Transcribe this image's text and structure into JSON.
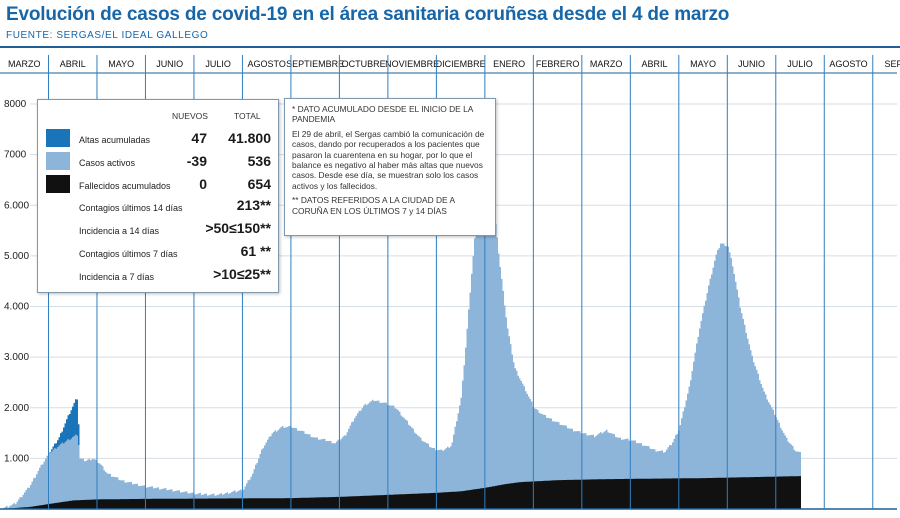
{
  "header": {
    "title": "Evolución de casos de covid-19 en el área sanitaria coruñesa desde el 4 de marzo",
    "source": "FUENTE: SERGAS/EL IDEAL GALLEGO"
  },
  "colors": {
    "title": "#1666a8",
    "altas": "#1a74ba",
    "activos": "#8db4d9",
    "fallecidos": "#111111",
    "month_line": "#2f7fc1",
    "grid": "#d6dde3"
  },
  "legend": {
    "col_nuevos": "NUEVOS",
    "col_total": "TOTAL",
    "rows": [
      {
        "label": "Altas acumuladas",
        "nuevos": "47",
        "total": "41.800"
      },
      {
        "label": "Casos activos",
        "nuevos": "-39",
        "total": "536"
      },
      {
        "label": "Fallecidos acumulados",
        "nuevos": "0",
        "total": "654"
      }
    ],
    "stats": [
      {
        "label": "Contagios últimos 14 días",
        "value": "213**"
      },
      {
        "label": "Incidencia a 14 días",
        "value": ">50≤150**"
      },
      {
        "label": "Contagios últimos 7 días",
        "value": "61 **"
      },
      {
        "label": "Incidencia a 7 días",
        "value": ">10≤25**"
      }
    ]
  },
  "note": {
    "p1": "* DATO ACUMULADO DESDE EL INICIO DE LA PANDEMIA",
    "p2": "El 29 de abril, el Sergas cambió la comunicación de casos, dando por recuperados a los pacientes que pasaron la cuarentena en su hogar, por lo que el balance es negativo al haber más altas que nuevos casos. Desde ese día, se muestran solo los casos activos y los fallecidos.",
    "p3": "** DATOS REFERIDOS A LA CIUDAD DE A CORUÑA EN LOS ÚLTIMOS 7 y 14 DÍAS"
  },
  "chart_data": {
    "type": "area",
    "months": [
      "MARZO",
      "ABRIL",
      "MAYO",
      "JUNIO",
      "JULIO",
      "AGOSTO",
      "SEPTIEMBRE",
      "OCTUBRE",
      "NOVIEMBRE",
      "DICIEMBRE",
      "ENERO",
      "FEBRERO",
      "MARZO",
      "ABRIL",
      "MAYO",
      "JUNIO",
      "JULIO",
      "AGOSTO",
      "SEPT."
    ],
    "y_ticks": [
      "1.000",
      "2.000",
      "3.000",
      "4.000",
      "5.000",
      "6.000",
      "7000",
      "8000"
    ],
    "ylim": [
      0,
      8000
    ],
    "grid": true,
    "series": [
      {
        "name": "Casos activos",
        "key": "activos",
        "points": [
          [
            0,
            0
          ],
          [
            0.3,
            100
          ],
          [
            0.6,
            450
          ],
          [
            0.8,
            800
          ],
          [
            1.0,
            1100
          ],
          [
            1.2,
            1250
          ],
          [
            1.45,
            1400
          ],
          [
            1.6,
            1480
          ],
          [
            1.62,
            1000
          ],
          [
            1.75,
            950
          ],
          [
            1.9,
            1000
          ],
          [
            2.05,
            900
          ],
          [
            2.2,
            700
          ],
          [
            2.5,
            560
          ],
          [
            3.0,
            440
          ],
          [
            3.5,
            380
          ],
          [
            4.0,
            300
          ],
          [
            4.5,
            280
          ],
          [
            5.0,
            380
          ],
          [
            5.2,
            700
          ],
          [
            5.4,
            1200
          ],
          [
            5.6,
            1500
          ],
          [
            5.8,
            1620
          ],
          [
            6.0,
            1620
          ],
          [
            6.2,
            1540
          ],
          [
            6.5,
            1400
          ],
          [
            6.7,
            1360
          ],
          [
            6.9,
            1300
          ],
          [
            7.1,
            1450
          ],
          [
            7.3,
            1800
          ],
          [
            7.5,
            2050
          ],
          [
            7.7,
            2150
          ],
          [
            7.9,
            2100
          ],
          [
            8.15,
            2000
          ],
          [
            8.4,
            1700
          ],
          [
            8.65,
            1400
          ],
          [
            8.9,
            1200
          ],
          [
            9.1,
            1150
          ],
          [
            9.3,
            1260
          ],
          [
            9.5,
            2200
          ],
          [
            9.6,
            3300
          ],
          [
            9.7,
            4500
          ],
          [
            9.8,
            5600
          ],
          [
            9.9,
            6300
          ],
          [
            10.0,
            6500
          ],
          [
            10.1,
            6350
          ],
          [
            10.2,
            5700
          ],
          [
            10.3,
            4800
          ],
          [
            10.45,
            3600
          ],
          [
            10.6,
            2800
          ],
          [
            10.8,
            2400
          ],
          [
            11.0,
            2000
          ],
          [
            11.2,
            1850
          ],
          [
            11.5,
            1700
          ],
          [
            11.8,
            1560
          ],
          [
            12.0,
            1500
          ],
          [
            12.25,
            1440
          ],
          [
            12.5,
            1550
          ],
          [
            12.75,
            1400
          ],
          [
            13.0,
            1360
          ],
          [
            13.25,
            1270
          ],
          [
            13.5,
            1160
          ],
          [
            13.7,
            1130
          ],
          [
            13.85,
            1300
          ],
          [
            14.0,
            1600
          ],
          [
            14.2,
            2400
          ],
          [
            14.4,
            3500
          ],
          [
            14.6,
            4400
          ],
          [
            14.75,
            5000
          ],
          [
            14.85,
            5250
          ],
          [
            15.0,
            5200
          ],
          [
            15.1,
            4800
          ],
          [
            15.25,
            4000
          ],
          [
            15.5,
            3000
          ],
          [
            15.75,
            2300
          ],
          [
            16.0,
            1800
          ],
          [
            16.2,
            1400
          ],
          [
            16.4,
            1150
          ],
          [
            16.5,
            1100
          ]
        ]
      },
      {
        "name": "Altas acumuladas",
        "key": "altas",
        "points": [
          [
            1.0,
            1100
          ],
          [
            1.2,
            1400
          ],
          [
            1.4,
            1850
          ],
          [
            1.55,
            2150
          ],
          [
            1.6,
            2200
          ],
          [
            1.62,
            1000
          ]
        ]
      },
      {
        "name": "Fallecidos acumulados",
        "key": "fallecidos",
        "points": [
          [
            0,
            0
          ],
          [
            0.6,
            40
          ],
          [
            1.0,
            100
          ],
          [
            1.5,
            170
          ],
          [
            2.0,
            190
          ],
          [
            3.0,
            200
          ],
          [
            4.0,
            205
          ],
          [
            5.0,
            210
          ],
          [
            6.0,
            215
          ],
          [
            7.0,
            240
          ],
          [
            8.0,
            280
          ],
          [
            9.0,
            320
          ],
          [
            9.5,
            350
          ],
          [
            10.0,
            420
          ],
          [
            10.4,
            490
          ],
          [
            10.7,
            530
          ],
          [
            11.5,
            570
          ],
          [
            12.5,
            590
          ],
          [
            13.5,
            600
          ],
          [
            14.5,
            610
          ],
          [
            15.5,
            630
          ],
          [
            16.5,
            650
          ]
        ]
      }
    ]
  }
}
